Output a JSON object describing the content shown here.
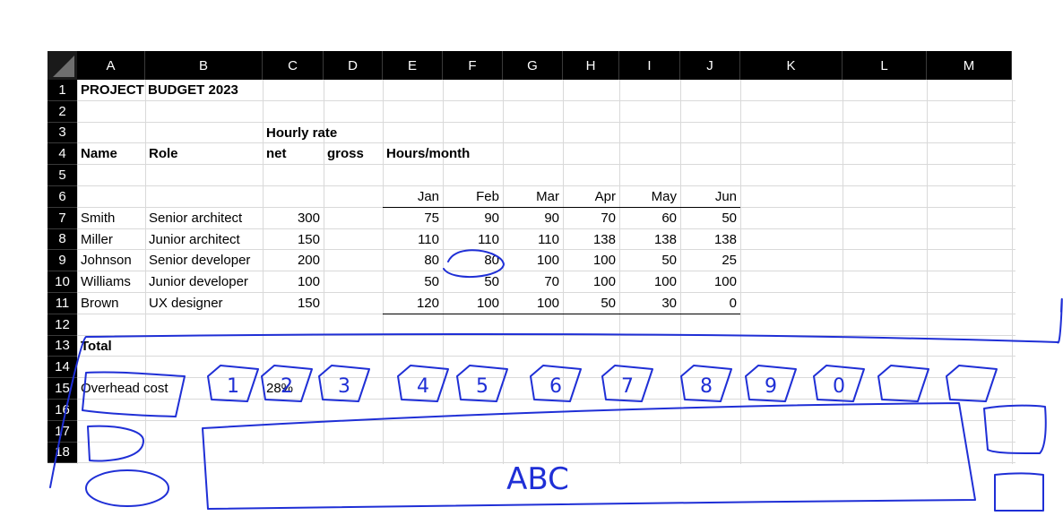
{
  "sheet": {
    "columns": [
      "A",
      "B",
      "C",
      "D",
      "E",
      "F",
      "G",
      "H",
      "I",
      "J",
      "K",
      "L",
      "M"
    ],
    "rows": [
      "1",
      "2",
      "3",
      "4",
      "5",
      "6",
      "7",
      "8",
      "9",
      "10",
      "11",
      "12",
      "13",
      "14",
      "15",
      "16",
      "17",
      "18"
    ],
    "title": "PROJECT BUDGET 2023",
    "headers": {
      "hourly_rate": "Hourly rate",
      "name": "Name",
      "role": "Role",
      "net": "net",
      "gross": "gross",
      "hours_month": "Hours/month"
    },
    "months": [
      "Jan",
      "Feb",
      "Mar",
      "Apr",
      "May",
      "Jun"
    ],
    "people": [
      {
        "name": "Smith",
        "role": "Senior architect",
        "net": "300",
        "hours": [
          "75",
          "90",
          "90",
          "70",
          "60",
          "50"
        ]
      },
      {
        "name": "Miller",
        "role": "Junior architect",
        "net": "150",
        "hours": [
          "110",
          "110",
          "110",
          "138",
          "138",
          "138"
        ]
      },
      {
        "name": "Johnson",
        "role": "Senior developer",
        "net": "200",
        "hours": [
          "80",
          "80",
          "100",
          "100",
          "50",
          "25"
        ]
      },
      {
        "name": "Williams",
        "role": "Junior developer",
        "net": "100",
        "hours": [
          "50",
          "50",
          "70",
          "100",
          "100",
          "100"
        ]
      },
      {
        "name": "Brown",
        "role": "UX designer",
        "net": "150",
        "hours": [
          "120",
          "100",
          "100",
          "50",
          "30",
          "0"
        ]
      }
    ],
    "total_label": "Total",
    "overhead_label": "Overhead cost",
    "overhead_value": "28%"
  },
  "annotations": {
    "color": "#1f2fd6",
    "button_digits": [
      "1",
      "2",
      "3",
      "4",
      "5",
      "6",
      "7",
      "8",
      "9",
      "0"
    ],
    "panel_text": "ABC"
  }
}
